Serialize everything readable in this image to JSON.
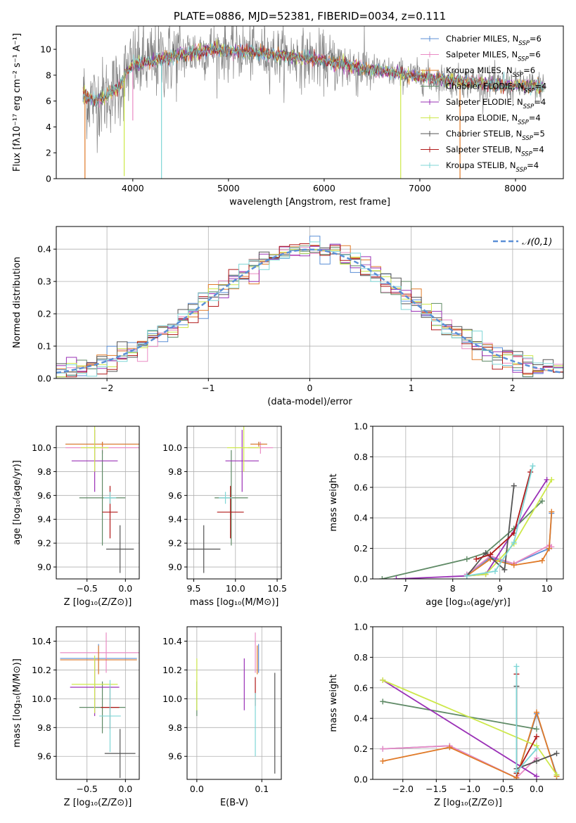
{
  "colors": {
    "Chabrier MILES": "#5b8fd6",
    "Salpeter MILES": "#e98bc4",
    "Kroupa MILES": "#e07a28",
    "Chabrier ELODIE": "#5f8a66",
    "Salpeter ELODIE": "#9a30b6",
    "Kroupa ELODIE": "#cde84a",
    "Chabrier STELIB": "#555555",
    "Salpeter STELIB": "#b01818",
    "Kroupa STELIB": "#7fd6d6",
    "normal": "#5b8fd6"
  },
  "chart_data": [
    {
      "type": "line",
      "title": "PLATE=0886, MJD=52381, FIBERID=0034, z=0.111",
      "xlabel": "wavelength [Angstrom, rest frame]",
      "ylabel": "Flux [fλ10⁻¹⁷ erg cm⁻² s⁻¹ A⁻¹]",
      "xlim": [
        3200,
        8500
      ],
      "ylim": [
        0,
        11.8
      ],
      "xticks": [
        "4000",
        "5000",
        "6000",
        "7000",
        "8000"
      ],
      "yticks": [
        "0",
        "2",
        "4",
        "6",
        "8",
        "10"
      ],
      "legend_position": "upper-right",
      "legend": [
        {
          "prefix": "Chabrier MILES, N",
          "sub": "SSP",
          "suffix": "=6"
        },
        {
          "prefix": "Salpeter MILES, N",
          "sub": "SSP",
          "suffix": "=6"
        },
        {
          "prefix": "Kroupa MILES, N",
          "sub": "SSP",
          "suffix": "=6"
        },
        {
          "prefix": "Chabrier ELODIE, N",
          "sub": "SSP",
          "suffix": "=4"
        },
        {
          "prefix": "Salpeter ELODIE, N",
          "sub": "SSP",
          "suffix": "=4"
        },
        {
          "prefix": "Kroupa ELODIE, N",
          "sub": "SSP",
          "suffix": "=4"
        },
        {
          "prefix": "Chabrier STELIB, N",
          "sub": "SSP",
          "suffix": "=5"
        },
        {
          "prefix": "Salpeter STELIB, N",
          "sub": "SSP",
          "suffix": "=4"
        },
        {
          "prefix": "Kroupa STELIB, N",
          "sub": "SSP",
          "suffix": "=4"
        }
      ],
      "continuum": [
        [
          3480,
          6.4
        ],
        [
          3600,
          6.0
        ],
        [
          3700,
          6.3
        ],
        [
          3800,
          6.8
        ],
        [
          3880,
          7.3
        ],
        [
          3940,
          8.2
        ],
        [
          4000,
          8.8
        ],
        [
          4100,
          8.9
        ],
        [
          4300,
          9.2
        ],
        [
          4500,
          9.6
        ],
        [
          4800,
          10.0
        ],
        [
          5000,
          9.9
        ],
        [
          5200,
          9.8
        ],
        [
          5500,
          9.6
        ],
        [
          5800,
          9.3
        ],
        [
          6000,
          9.1
        ],
        [
          6200,
          8.8
        ],
        [
          6500,
          8.4
        ],
        [
          6800,
          8.1
        ],
        [
          7000,
          7.9
        ],
        [
          7300,
          7.6
        ],
        [
          7600,
          7.4
        ],
        [
          7900,
          7.2
        ],
        [
          8300,
          7.1
        ]
      ],
      "data_noise": "gray observed spectrum with large scatter (about ±3) around the model continuum",
      "absorption_dips": [
        {
          "wavelength": 3500,
          "value": 0.0
        },
        {
          "wavelength": 3650,
          "value": 5.5
        },
        {
          "wavelength": 3910,
          "value": 0.2
        },
        {
          "wavelength": 4000,
          "value": 4.5
        },
        {
          "wavelength": 4300,
          "value": 0.0
        },
        {
          "wavelength": 6800,
          "value": 0.0
        },
        {
          "wavelength": 7420,
          "value": 0.0
        }
      ]
    },
    {
      "type": "histogram",
      "xlabel": "(data-model)/error",
      "ylabel": "Normed distribution",
      "xlim": [
        -2.5,
        2.5
      ],
      "ylim": [
        0,
        0.47
      ],
      "xticks": [
        "−2",
        "−1",
        "0",
        "1",
        "2"
      ],
      "yticks": [
        "0.0",
        "0.1",
        "0.2",
        "0.3",
        "0.4"
      ],
      "legend_position": "upper-right",
      "legend": [
        {
          "label": "𝒩(0,1)"
        }
      ],
      "bin_width": 0.1,
      "reference_curve": "normal pdf, mean 0, sigma 1",
      "series_count": 9
    },
    {
      "type": "scatter",
      "xlabel": "Z [log₁₀(Z/Z⊙)]",
      "ylabel": "age  [log₁₀(age/yr)]",
      "xlim": [
        -0.9,
        0.18
      ],
      "ylim": [
        8.9,
        10.18
      ],
      "xticks": [
        "−0.5",
        "0.0"
      ],
      "yticks": [
        "9.0",
        "9.2",
        "9.4",
        "9.6",
        "9.8",
        "10.0"
      ],
      "points": [
        {
          "model": "Chabrier MILES",
          "x": -0.3,
          "xerr": 0.48,
          "y": 10.03,
          "yerr": 0.02
        },
        {
          "model": "Salpeter MILES",
          "x": -0.3,
          "xerr": 0.48,
          "y": 10.0,
          "yerr": 0.05
        },
        {
          "model": "Kroupa MILES",
          "x": -0.3,
          "xerr": 0.48,
          "y": 10.03,
          "yerr": 0.02
        },
        {
          "model": "Chabrier ELODIE",
          "x": -0.3,
          "xerr": 0.3,
          "y": 9.58,
          "yerr": 0.4
        },
        {
          "model": "Salpeter ELODIE",
          "x": -0.4,
          "xerr": 0.3,
          "y": 9.89,
          "yerr": 0.26
        },
        {
          "model": "Kroupa ELODIE",
          "x": -0.4,
          "xerr": 0.18,
          "y": 10.0,
          "yerr": 0.2
        },
        {
          "model": "Chabrier STELIB",
          "x": -0.07,
          "xerr": 0.18,
          "y": 9.15,
          "yerr": 0.2
        },
        {
          "model": "Salpeter STELIB",
          "x": -0.2,
          "xerr": 0.1,
          "y": 9.46,
          "yerr": 0.22
        },
        {
          "model": "Kroupa STELIB",
          "x": -0.2,
          "xerr": 0.08,
          "y": 9.58,
          "yerr": 0.05
        }
      ]
    },
    {
      "type": "scatter",
      "xlabel": "mass [log₁₀(M/M⊙)]",
      "xlim": [
        9.42,
        10.55
      ],
      "ylim": [
        8.9,
        10.18
      ],
      "xticks": [
        "9.5",
        "10.0",
        "10.5"
      ],
      "yticks": [
        "9.0",
        "9.2",
        "9.4",
        "9.6",
        "9.8",
        "10.0"
      ],
      "points": [
        {
          "model": "Chabrier MILES",
          "x": 10.28,
          "xerr": 0.1,
          "y": 10.03,
          "yerr": 0.02
        },
        {
          "model": "Salpeter MILES",
          "x": 10.3,
          "xerr": 0.15,
          "y": 10.0,
          "yerr": 0.05
        },
        {
          "model": "Kroupa MILES",
          "x": 10.28,
          "xerr": 0.1,
          "y": 10.03,
          "yerr": 0.02
        },
        {
          "model": "Chabrier ELODIE",
          "x": 9.95,
          "xerr": 0.2,
          "y": 9.58,
          "yerr": 0.4
        },
        {
          "model": "Salpeter ELODIE",
          "x": 10.08,
          "xerr": 0.2,
          "y": 9.89,
          "yerr": 0.26
        },
        {
          "model": "Kroupa ELODIE",
          "x": 10.1,
          "xerr": 0.2,
          "y": 10.0,
          "yerr": 0.2
        },
        {
          "model": "Chabrier STELIB",
          "x": 9.62,
          "xerr": 0.2,
          "y": 9.15,
          "yerr": 0.2
        },
        {
          "model": "Salpeter STELIB",
          "x": 9.94,
          "xerr": 0.16,
          "y": 9.46,
          "yerr": 0.22
        },
        {
          "model": "Kroupa STELIB",
          "x": 9.88,
          "xerr": 0.08,
          "y": 9.58,
          "yerr": 0.05
        }
      ]
    },
    {
      "type": "line",
      "xlabel": "age  [log₁₀(age/yr)]",
      "ylabel": "mass weight",
      "xlim": [
        6.3,
        10.35
      ],
      "ylim": [
        0,
        1
      ],
      "xticks": [
        "7",
        "8",
        "9",
        "10"
      ],
      "yticks": [
        "0.0",
        "0.2",
        "0.4",
        "0.6",
        "0.8",
        "1.0"
      ],
      "series": [
        {
          "model": "Chabrier MILES",
          "x": [
            8.3,
            8.8,
            9.3,
            10.05,
            10.1
          ],
          "y": [
            0.03,
            0.14,
            0.1,
            0.2,
            0.43
          ]
        },
        {
          "model": "Salpeter MILES",
          "x": [
            8.3,
            8.8,
            9.3,
            10.05,
            10.1
          ],
          "y": [
            0.03,
            0.15,
            0.1,
            0.22,
            0.21
          ]
        },
        {
          "model": "Kroupa MILES",
          "x": [
            8.3,
            8.8,
            9.3,
            9.9,
            10.05,
            10.1
          ],
          "y": [
            0.02,
            0.13,
            0.09,
            0.12,
            0.2,
            0.44
          ]
        },
        {
          "model": "Chabrier ELODIE",
          "x": [
            6.5,
            8.3,
            8.7,
            9.3,
            9.9
          ],
          "y": [
            0.0,
            0.13,
            0.17,
            0.33,
            0.51
          ]
        },
        {
          "model": "Salpeter ELODIE",
          "x": [
            6.8,
            8.3,
            8.7,
            10.0
          ],
          "y": [
            0.0,
            0.02,
            0.03,
            0.65
          ]
        },
        {
          "model": "Kroupa ELODIE",
          "x": [
            8.3,
            8.7,
            9.3,
            10.1
          ],
          "y": [
            0.02,
            0.03,
            0.23,
            0.65
          ]
        },
        {
          "model": "Chabrier STELIB",
          "x": [
            8.3,
            8.7,
            9.1,
            9.3
          ],
          "y": [
            0.02,
            0.17,
            0.06,
            0.61
          ]
        },
        {
          "model": "Salpeter STELIB",
          "x": [
            8.5,
            8.8,
            9.3,
            9.65
          ],
          "y": [
            0.13,
            0.16,
            0.3,
            0.7
          ]
        },
        {
          "model": "Kroupa STELIB",
          "x": [
            8.3,
            8.9,
            9.3,
            9.7
          ],
          "y": [
            0.02,
            0.05,
            0.24,
            0.74
          ]
        }
      ]
    },
    {
      "type": "scatter",
      "xlabel": "Z [log₁₀(Z/Z⊙)]",
      "ylabel": "mass [log₁₀(M/M⊙)]",
      "xlim": [
        -0.9,
        0.18
      ],
      "ylim": [
        9.44,
        10.5
      ],
      "xticks": [
        "−0.5",
        "0.0"
      ],
      "yticks": [
        "9.6",
        "9.8",
        "10.0",
        "10.2",
        "10.4"
      ],
      "points": [
        {
          "model": "Chabrier MILES",
          "x": -0.35,
          "xerr": 0.5,
          "y": 10.28,
          "yerr": 0.1
        },
        {
          "model": "Salpeter MILES",
          "x": -0.25,
          "xerr": 0.6,
          "y": 10.32,
          "yerr": 0.14
        },
        {
          "model": "Kroupa MILES",
          "x": -0.35,
          "xerr": 0.5,
          "y": 10.27,
          "yerr": 0.1
        },
        {
          "model": "Chabrier ELODIE",
          "x": -0.3,
          "xerr": 0.3,
          "y": 9.94,
          "yerr": 0.18
        },
        {
          "model": "Salpeter ELODIE",
          "x": -0.4,
          "xerr": 0.32,
          "y": 10.08,
          "yerr": 0.2
        },
        {
          "model": "Kroupa ELODIE",
          "x": -0.4,
          "xerr": 0.3,
          "y": 10.1,
          "yerr": 0.2
        },
        {
          "model": "Chabrier STELIB",
          "x": -0.07,
          "xerr": 0.2,
          "y": 9.62,
          "yerr": 0.17
        },
        {
          "model": "Salpeter STELIB",
          "x": -0.2,
          "xerr": 0.12,
          "y": 9.94,
          "yerr": 0.15
        },
        {
          "model": "Kroupa STELIB",
          "x": -0.2,
          "xerr": 0.14,
          "y": 9.88,
          "yerr": 0.25
        }
      ]
    },
    {
      "type": "scatter",
      "xlabel": "E(B-V)",
      "xlim": [
        -0.015,
        0.13
      ],
      "ylim": [
        9.44,
        10.5
      ],
      "xticks": [
        "0.0",
        "0.1"
      ],
      "yticks": [
        "9.6",
        "9.8",
        "10.0",
        "10.2",
        "10.4"
      ],
      "points": [
        {
          "model": "Chabrier MILES",
          "x": 0.095,
          "yerr": 0.1,
          "y": 10.28
        },
        {
          "model": "Salpeter MILES",
          "x": 0.09,
          "yerr": 0.14,
          "y": 10.32
        },
        {
          "model": "Kroupa MILES",
          "x": 0.093,
          "yerr": 0.1,
          "y": 10.27
        },
        {
          "model": "Chabrier ELODIE",
          "x": 0.0,
          "yerr": 0.12,
          "y": 10.0
        },
        {
          "model": "Salpeter ELODIE",
          "x": 0.073,
          "yerr": 0.18,
          "y": 10.1
        },
        {
          "model": "Kroupa ELODIE",
          "x": 0.0,
          "yerr": 0.18,
          "y": 10.1
        },
        {
          "model": "Chabrier STELIB",
          "x": 0.12,
          "yerr": 0.35,
          "y": 9.83
        },
        {
          "model": "Salpeter STELIB",
          "x": 0.09,
          "yerr": 0.1,
          "y": 10.05
        },
        {
          "model": "Kroupa STELIB",
          "x": 0.09,
          "yerr": 0.22,
          "y": 9.82
        }
      ]
    },
    {
      "type": "line",
      "xlabel": "Z [log₁₀(Z/Z⊙)]",
      "ylabel": "mass weight",
      "xlim": [
        -2.45,
        0.4
      ],
      "ylim": [
        0,
        1
      ],
      "xticks": [
        "−2.0",
        "−1.5",
        "−1.0",
        "−0.5",
        "0.0"
      ],
      "yticks": [
        "0.0",
        "0.2",
        "0.4",
        "0.6",
        "0.8",
        "1.0"
      ],
      "series": [
        {
          "model": "Chabrier MILES",
          "x": [
            -2.3,
            -1.3,
            -0.3,
            0.0,
            0.3
          ],
          "y": [
            0.2,
            0.22,
            0.01,
            0.43,
            0.03
          ]
        },
        {
          "model": "Salpeter MILES",
          "x": [
            -2.3,
            -1.3,
            -0.3,
            0.0
          ],
          "y": [
            0.2,
            0.22,
            0.01,
            0.14
          ]
        },
        {
          "model": "Kroupa MILES",
          "x": [
            -2.3,
            -1.3,
            -0.3,
            0.0,
            0.3
          ],
          "y": [
            0.12,
            0.21,
            0.01,
            0.44,
            0.02
          ]
        },
        {
          "model": "Chabrier ELODIE",
          "x": [
            -2.3,
            0.0
          ],
          "y": [
            0.51,
            0.33
          ]
        },
        {
          "model": "Salpeter ELODIE",
          "x": [
            -2.3,
            0.0
          ],
          "y": [
            0.65,
            0.02
          ]
        },
        {
          "model": "Kroupa ELODIE",
          "x": [
            -2.3,
            0.0,
            0.3
          ],
          "y": [
            0.65,
            0.22,
            0.03
          ]
        },
        {
          "model": "Chabrier STELIB",
          "x": [
            -0.3,
            -0.3,
            0.0,
            0.3
          ],
          "y": [
            0.61,
            0.07,
            0.12,
            0.17
          ]
        },
        {
          "model": "Salpeter STELIB",
          "x": [
            -0.3,
            -0.3,
            0.0
          ],
          "y": [
            0.69,
            0.04,
            0.28
          ]
        },
        {
          "model": "Kroupa STELIB",
          "x": [
            -0.3,
            -0.3,
            0.0
          ],
          "y": [
            0.74,
            0.05,
            0.2
          ]
        }
      ]
    }
  ]
}
